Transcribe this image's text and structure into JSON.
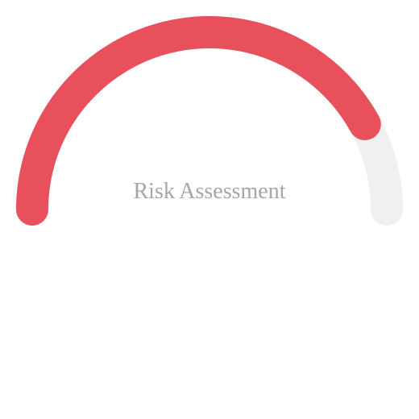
{
  "chart_data": {
    "type": "gauge",
    "title": "Risk Assessment",
    "value": 0.84,
    "min": 0,
    "max": 1,
    "colors": {
      "value_arc": "#e8505b",
      "track_arc": "#f0f0f0",
      "label": "#a6a6a6"
    }
  }
}
